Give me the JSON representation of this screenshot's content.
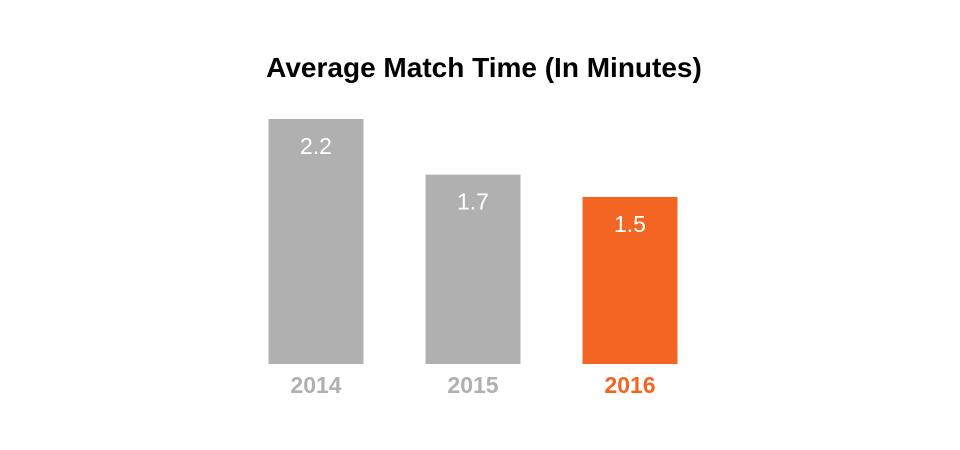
{
  "chart_data": {
    "type": "bar",
    "title": "Average Match Time (In Minutes)",
    "xlabel": "",
    "ylabel": "",
    "categories": [
      "2014",
      "2015",
      "2016"
    ],
    "values": [
      2.2,
      1.7,
      1.5
    ],
    "value_labels": [
      "2.2",
      "1.7",
      "1.5"
    ],
    "ylim": [
      0,
      2.2
    ],
    "grid": false,
    "legend": "none",
    "colors": {
      "default_bar": "#b0b0b0",
      "highlight_bar": "#f26522",
      "default_label": "#b0b0b0",
      "highlight_label": "#f26522",
      "value_text": "#ffffff",
      "title_text": "#000000"
    },
    "highlight_category": "2016"
  }
}
